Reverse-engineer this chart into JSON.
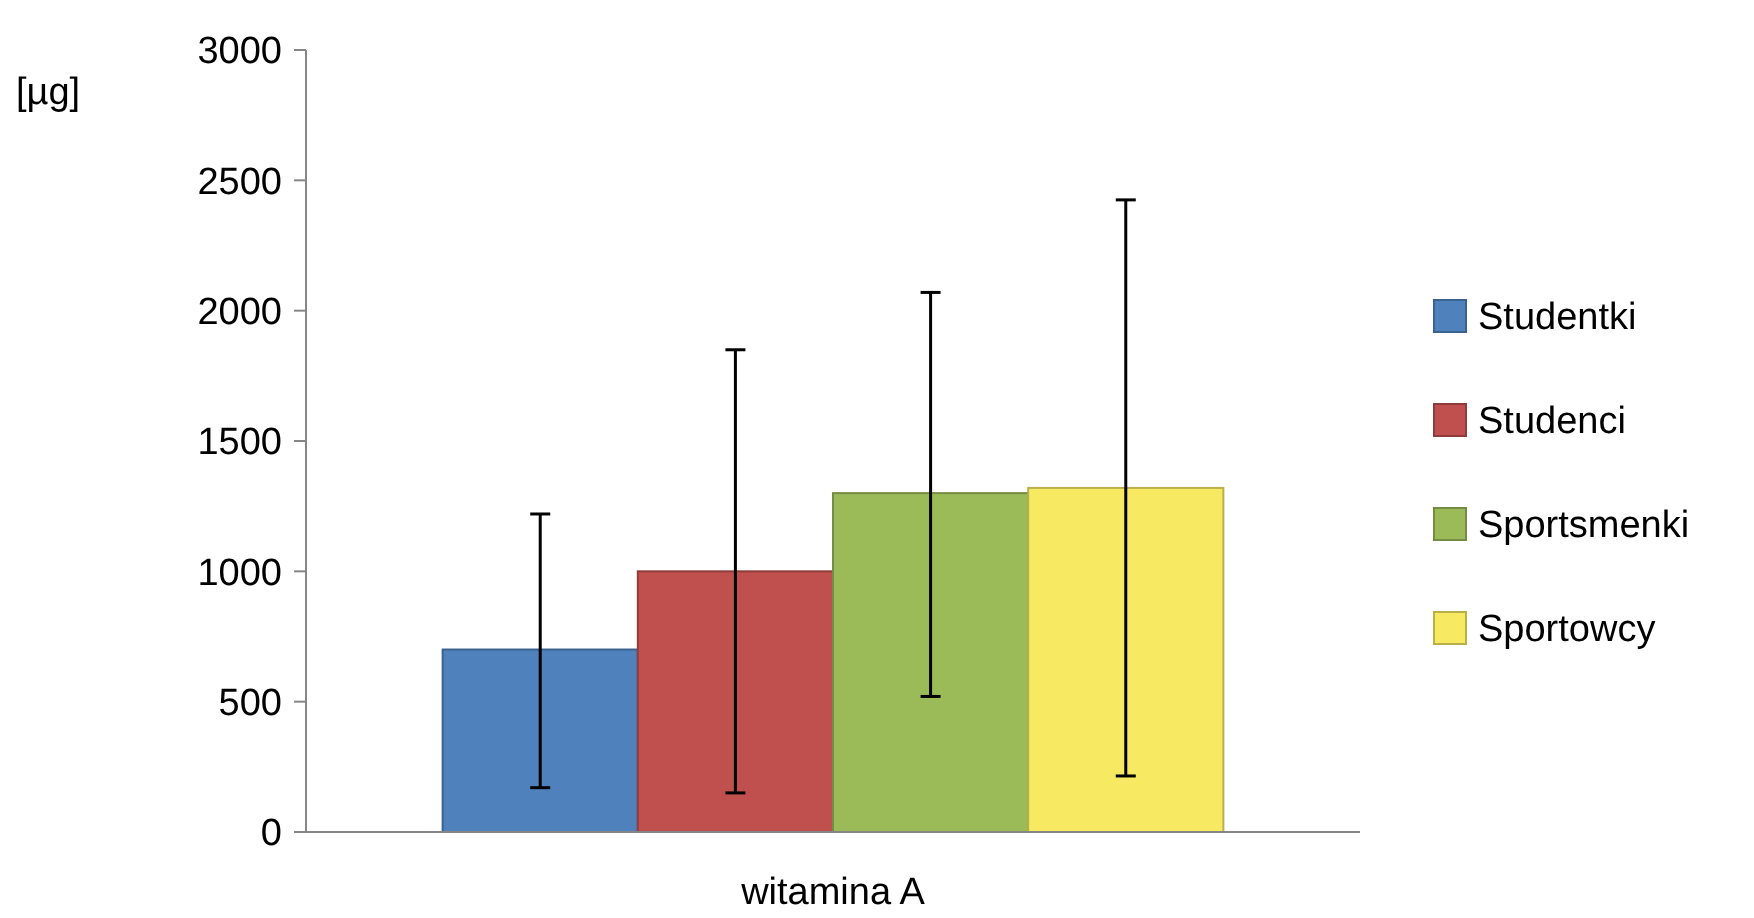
{
  "chart_data": {
    "type": "bar",
    "ylabel": "[µg]",
    "categories": [
      "witamina A"
    ],
    "series": [
      {
        "name": "Studentki",
        "color": "#4f81bd",
        "values": [
          700
        ],
        "errors": [
          [
            170,
            1220
          ]
        ]
      },
      {
        "name": "Studenci",
        "color": "#c0504d",
        "values": [
          1000
        ],
        "errors": [
          [
            150,
            1850
          ]
        ]
      },
      {
        "name": "Sportsmenki",
        "color": "#9bbb59",
        "values": [
          1300
        ],
        "errors": [
          [
            520,
            2070
          ]
        ]
      },
      {
        "name": "Sportowcy",
        "color": "#f7ea62",
        "values": [
          1320
        ],
        "errors": [
          [
            215,
            2425
          ]
        ]
      }
    ],
    "ylim": [
      0,
      3000
    ],
    "yticks": [
      0,
      500,
      1000,
      1500,
      2000,
      2500,
      3000
    ],
    "grid": false,
    "legend": "right"
  }
}
